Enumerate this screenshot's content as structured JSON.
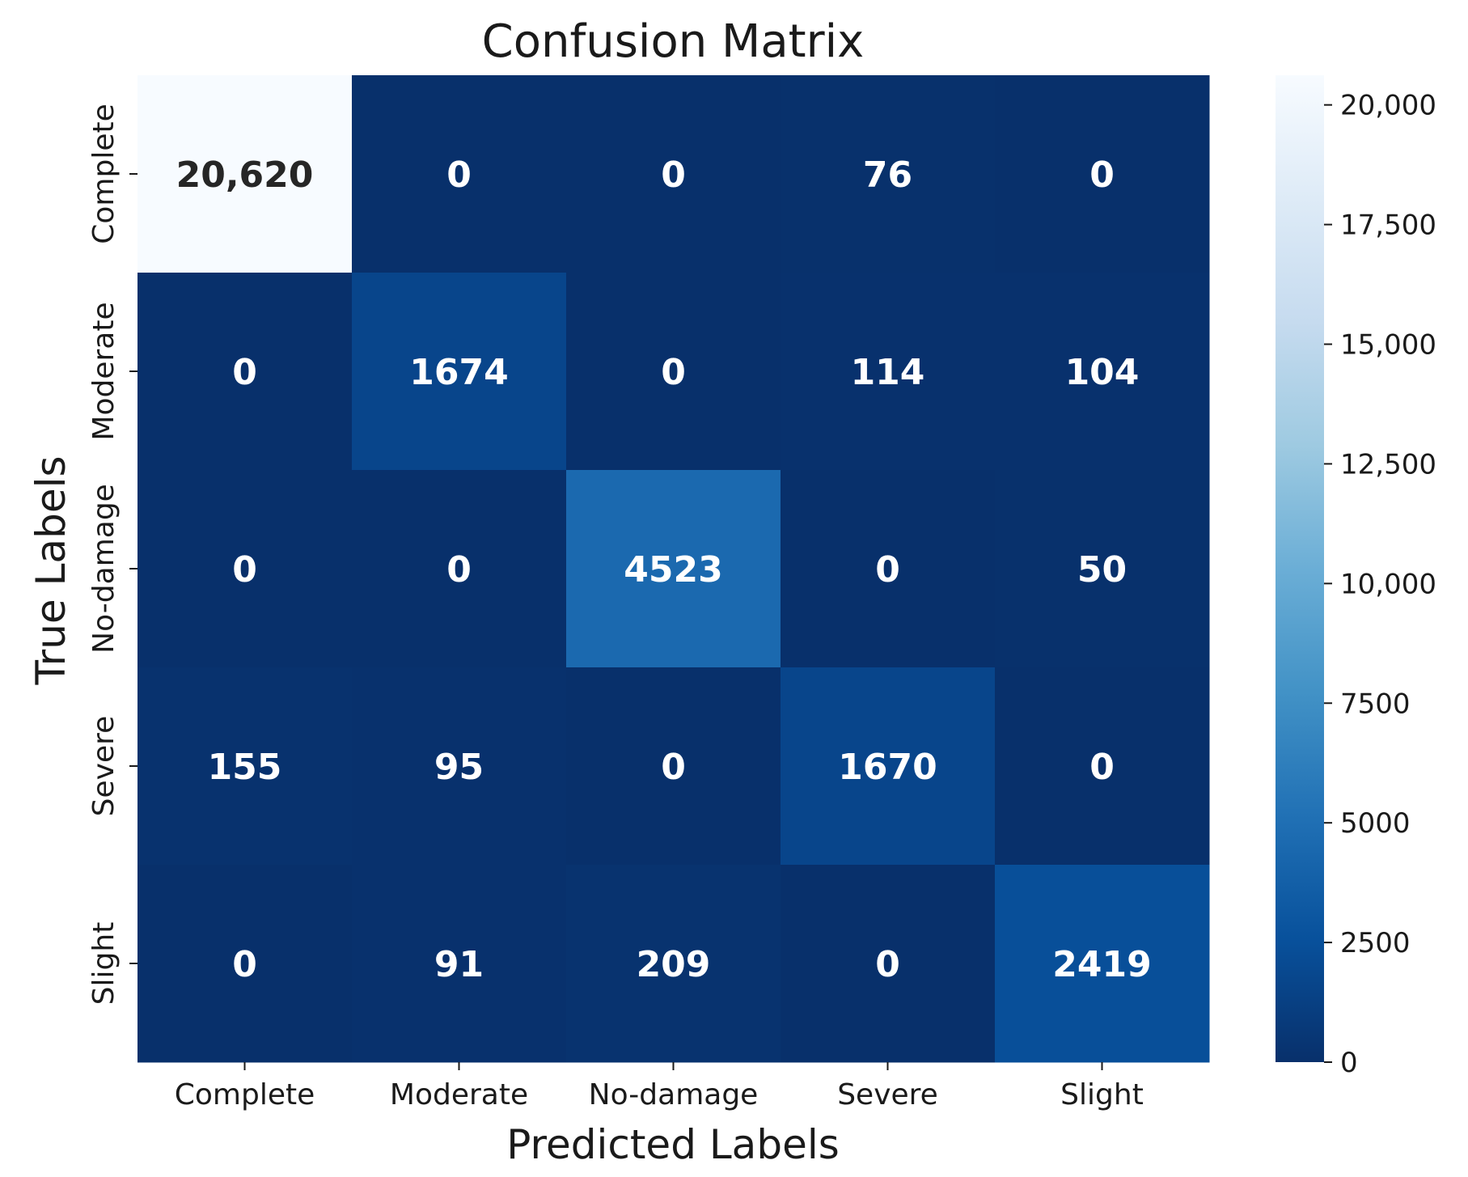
{
  "chart_data": {
    "type": "heatmap",
    "title": "Confusion Matrix",
    "xlabel": "Predicted Labels",
    "ylabel": "True Labels",
    "x_categories": [
      "Complete",
      "Moderate",
      "No-damage",
      "Severe",
      "Slight"
    ],
    "y_categories": [
      "Complete",
      "Moderate",
      "No-damage",
      "Severe",
      "Slight"
    ],
    "values": [
      [
        20620,
        0,
        0,
        76,
        0
      ],
      [
        0,
        1674,
        0,
        114,
        104
      ],
      [
        0,
        0,
        4523,
        0,
        50
      ],
      [
        155,
        95,
        0,
        1670,
        0
      ],
      [
        0,
        91,
        209,
        0,
        2419
      ]
    ],
    "value_labels": [
      [
        "20,620",
        "0",
        "0",
        "76",
        "0"
      ],
      [
        "0",
        "1674",
        "0",
        "114",
        "104"
      ],
      [
        "0",
        "0",
        "4523",
        "0",
        "50"
      ],
      [
        "155",
        "95",
        "0",
        "1670",
        "0"
      ],
      [
        "0",
        "91",
        "209",
        "0",
        "2419"
      ]
    ],
    "colormap": "Blues",
    "colorbar": {
      "range": [
        0,
        20620
      ],
      "ticks": [
        0,
        2500,
        5000,
        7500,
        10000,
        12500,
        15000,
        17500,
        20000
      ],
      "tick_labels": [
        "0",
        "2500",
        "5000",
        "7500",
        "10,000",
        "12,500",
        "15,000",
        "17,500",
        "20,000"
      ]
    },
    "grid": false,
    "legend": "colorbar-right"
  }
}
